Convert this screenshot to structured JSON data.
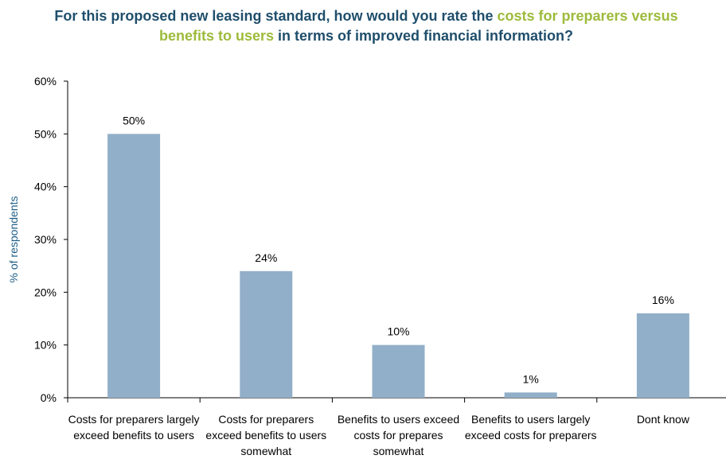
{
  "title": {
    "part1": "For this proposed new leasing standard, how would you rate the ",
    "part2": "costs for preparers versus benefits to users",
    "part3": " in terms of improved financial information?"
  },
  "colors": {
    "bar": "#92afc9",
    "title": "#1f4e6b",
    "highlight": "#9dbb3c",
    "axis_label": "#1f5f87"
  },
  "chart_data": {
    "type": "bar",
    "title": "For this proposed new leasing standard, how would you rate the costs for preparers versus benefits to users in terms of improved financial information?",
    "categories": [
      "Costs for preparers largely exceed benefits to users",
      "Costs for preparers exceed benefits to users somewhat",
      "Benefits to users exceed costs for prepares somewhat",
      "Benefits to users largely exceed costs for preparers",
      "Dont know"
    ],
    "values": [
      50,
      24,
      10,
      1,
      16
    ],
    "value_labels": [
      "50%",
      "24%",
      "10%",
      "1%",
      "16%"
    ],
    "xlabel": "",
    "ylabel": "% of respondents",
    "ylim": [
      0,
      60
    ],
    "yticks": [
      "0%",
      "10%",
      "20%",
      "30%",
      "40%",
      "50%",
      "60%"
    ],
    "grid": false,
    "legend": "none"
  }
}
